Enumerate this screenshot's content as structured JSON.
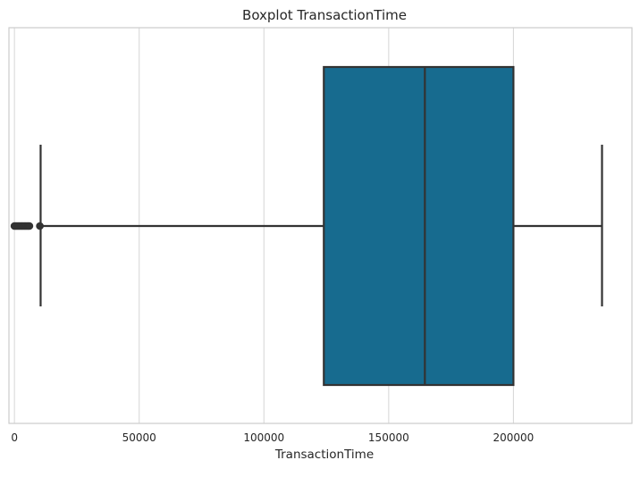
{
  "chart_data": {
    "type": "boxplot",
    "title": "Boxplot TransactionTime",
    "xlabel": "TransactionTime",
    "ylabel": "",
    "xlim": [
      -2200,
      247500
    ],
    "xticks": [
      0,
      50000,
      100000,
      150000,
      200000
    ],
    "xtick_labels": [
      "0",
      "50000",
      "100000",
      "150000",
      "200000"
    ],
    "grid": "vertical",
    "box": {
      "whisker_low": 10500,
      "q1": 124000,
      "median": 164500,
      "q3": 200000,
      "whisker_high": 235500
    },
    "outliers": [
      0,
      500,
      1000,
      1500,
      2000,
      2500,
      3000,
      3500,
      4000,
      4500,
      5000,
      5500,
      6000,
      10200
    ],
    "colors": {
      "box_fill": "#176b8f",
      "line": "#333333",
      "grid": "#d9d9d9",
      "frame": "#cccccc"
    }
  }
}
